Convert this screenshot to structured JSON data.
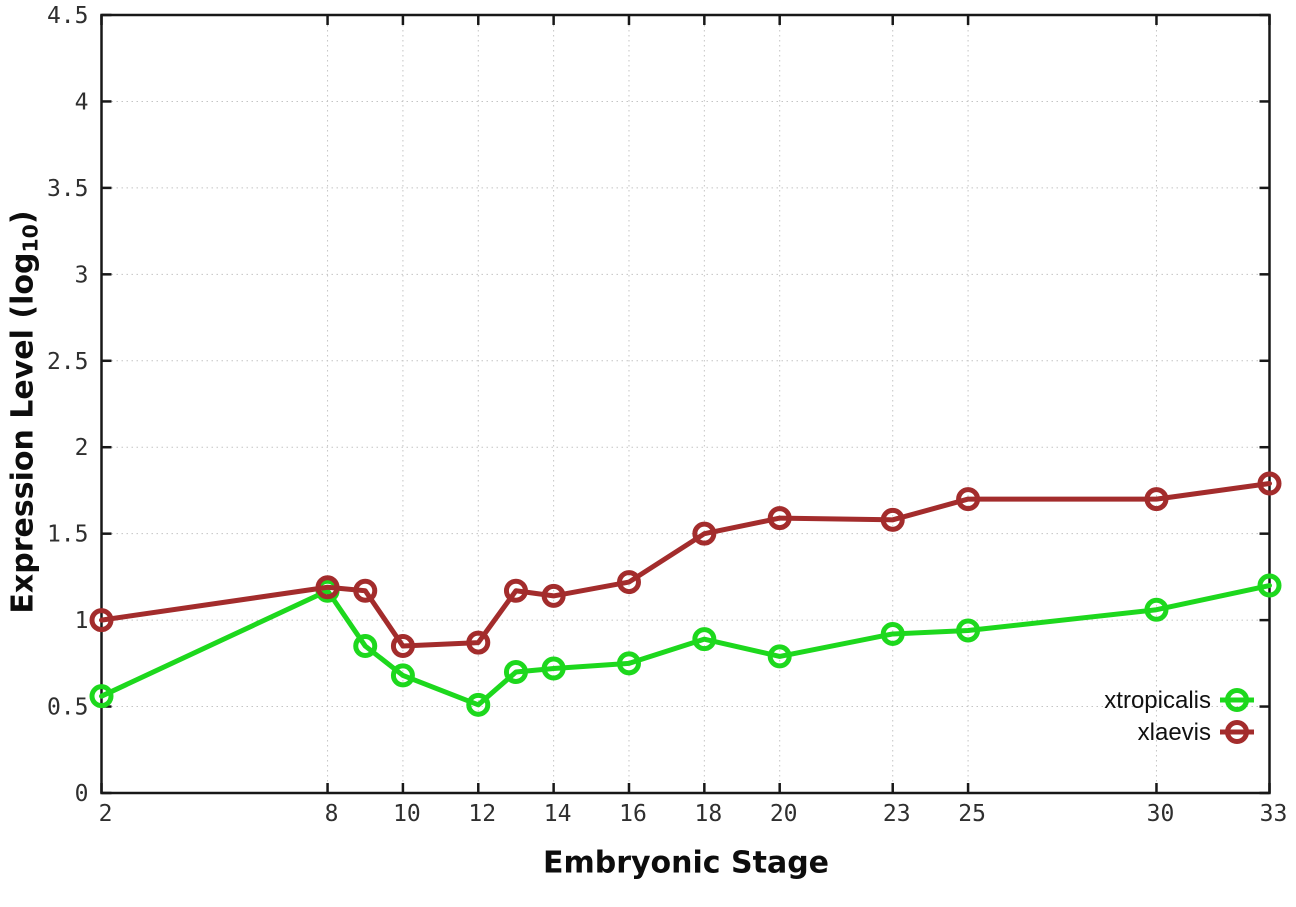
{
  "chart_data": {
    "type": "line",
    "title": "",
    "xlabel": "Embryonic Stage",
    "ylabel": "Expression Level (log10)",
    "ylabel_parts": {
      "prefix": "Expression Level (log",
      "sub": "10",
      "suffix": ")"
    },
    "xlim": [
      2,
      33
    ],
    "ylim": [
      0,
      4.5
    ],
    "grid": true,
    "legend_position": "inside-bottom-right",
    "x": [
      2,
      8,
      9,
      10,
      12,
      13,
      14,
      16,
      18,
      20,
      23,
      25,
      30,
      33
    ],
    "x_ticks": {
      "values": [
        2,
        8,
        10,
        12,
        14,
        16,
        18,
        20,
        23,
        25,
        30,
        33
      ],
      "labels": [
        "2",
        "8",
        "10",
        "12",
        "14",
        "16",
        "18",
        "20",
        "23",
        "25",
        "30",
        "33"
      ]
    },
    "y_ticks": {
      "values": [
        0,
        0.5,
        1,
        1.5,
        2,
        2.5,
        3,
        3.5,
        4,
        4.5
      ],
      "labels": [
        "0",
        "0.5",
        "1",
        "1.5",
        "2",
        "2.5",
        "3",
        "3.5",
        "4",
        "4.5"
      ]
    },
    "series": [
      {
        "name": "xtropicalis",
        "color": "#1dd81d",
        "values": [
          0.56,
          1.17,
          0.85,
          0.68,
          0.51,
          0.7,
          0.72,
          0.75,
          0.89,
          0.79,
          0.92,
          0.94,
          1.06,
          1.2
        ]
      },
      {
        "name": "xlaevis",
        "color": "#a32c2c",
        "values": [
          1.0,
          1.19,
          1.17,
          0.85,
          0.87,
          1.17,
          1.14,
          1.22,
          1.5,
          1.59,
          1.58,
          1.7,
          1.7,
          1.79
        ]
      }
    ],
    "style": {
      "background": "#ffffff",
      "grid_color": "#c4c4c4",
      "axis_color": "#181818",
      "tick_label_color": "#2f2f2f",
      "marker": "open-circle",
      "line_width": 5,
      "marker_radius": 9.5
    }
  }
}
